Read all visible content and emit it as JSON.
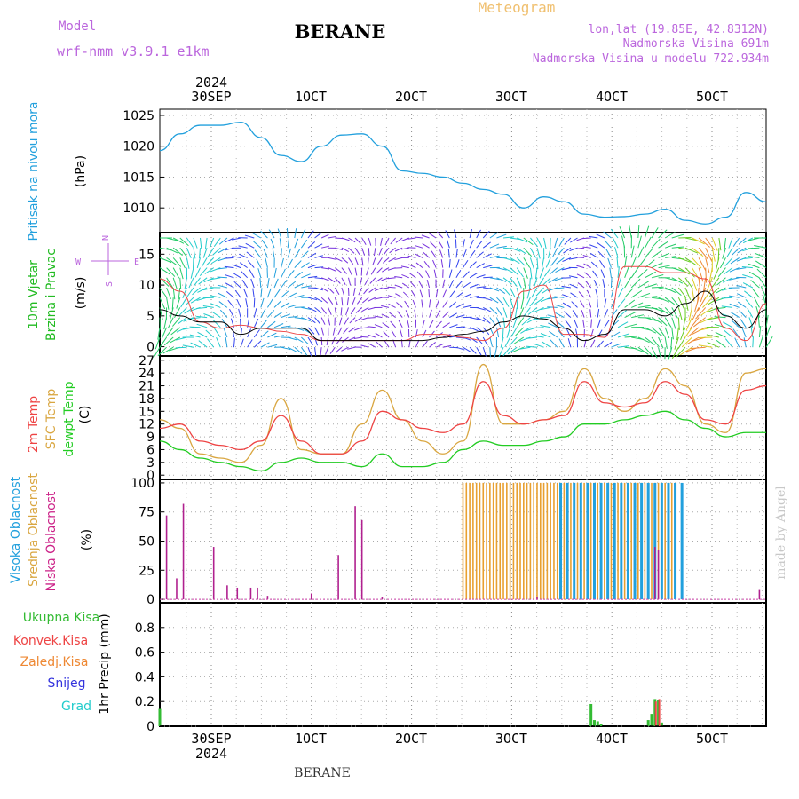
{
  "header": {
    "model_label": "Model",
    "model_name": "wrf-nmm_v3.9.1 e1km",
    "station": "BERANE",
    "title": "Meteogram",
    "location": "lon,lat (19.85E, 42.8312N)",
    "altitude": "Nadmorska Visina 691m",
    "model_altitude": "Nadmorska Visina u modelu 722.934m",
    "footer_station": "BERANE",
    "credit": "made by Angel"
  },
  "time_axis": {
    "top_year": "2024",
    "bottom_year": "2024",
    "tick_labels": [
      "30SEP",
      "1OCT",
      "2OCT",
      "3OCT",
      "4OCT",
      "5OCT"
    ]
  },
  "colors": {
    "pressure": "#22a0dd",
    "temp2m": "#ee4444",
    "sfc_temp": "#d9a640",
    "dewpt": "#22cc22",
    "high_cloud": "#22a0dd",
    "mid_cloud": "#e8a030",
    "low_cloud": "#b0208f",
    "total_precip": "#33bb33",
    "conv_precip": "#ee4444",
    "freezing": "#ee8833",
    "snow": "#3333dd",
    "hail": "#22cccc",
    "wind_label": "#22bb22",
    "wind_dir": "#bb66dd"
  },
  "chart_data": [
    {
      "type": "line",
      "ylabel_main": "Pritisak na nivou mora",
      "ylabel_unit": "(hPa)",
      "yticks": [
        "1010",
        "1015",
        "1020",
        "1025"
      ],
      "ylim": [
        1006,
        1026
      ],
      "x_hours": [
        0,
        6,
        12,
        18,
        24,
        30,
        36,
        42,
        48,
        54,
        60,
        66,
        72,
        78,
        84,
        90,
        96,
        102,
        108,
        114,
        120,
        126,
        132,
        138,
        144,
        150,
        156,
        162,
        168,
        174,
        180
      ],
      "series": [
        {
          "values": [
            1019.3,
            1022.0,
            1023.4,
            1023.4,
            1023.9,
            1021.4,
            1018.5,
            1017.5,
            1020.0,
            1021.8,
            1022.0,
            1020.0,
            1016.0,
            1015.6,
            1015.0,
            1014.0,
            1013.0,
            1012.2,
            1010.0,
            1011.8,
            1011.0,
            1009.0,
            1008.5,
            1008.6,
            1009.0,
            1009.8,
            1008.0,
            1007.4,
            1008.5,
            1012.5,
            1011.0
          ]
        }
      ]
    },
    {
      "type": "line",
      "ylabel_main": "10m Vjetar",
      "ylabel_sub": "Brzina i Pravac",
      "ylabel_unit": "(m/s)",
      "compass": [
        "N",
        "E",
        "S",
        "W"
      ],
      "yticks": [
        "0",
        "5",
        "10",
        "15"
      ],
      "ylim": [
        -1.5,
        18.5
      ],
      "x_hours": [
        0,
        6,
        12,
        18,
        24,
        30,
        36,
        42,
        48,
        54,
        60,
        66,
        72,
        78,
        84,
        90,
        96,
        102,
        108,
        114,
        120,
        126,
        132,
        138,
        144,
        150,
        156,
        162,
        168,
        174,
        180
      ],
      "series": [
        {
          "values": [
            6,
            5,
            4,
            4,
            2,
            3,
            3,
            3,
            1,
            1,
            1,
            1,
            1,
            1,
            1.5,
            2,
            2.5,
            4,
            5,
            4.5,
            3,
            1,
            2,
            6,
            6,
            5,
            7,
            9,
            5,
            3,
            6
          ]
        },
        {
          "values": [
            11,
            9,
            4,
            3,
            3.5,
            3,
            2.5,
            2,
            1,
            1,
            1,
            1,
            1,
            2,
            2,
            1.5,
            1,
            3,
            9,
            10,
            2,
            2,
            1.5,
            13,
            13,
            12,
            12,
            11,
            3,
            1,
            7
          ]
        }
      ]
    },
    {
      "type": "line",
      "ylabel_main": "2m Temp",
      "ylabel_sfc": "SFC Temp",
      "ylabel_dew": "dewpt Temp",
      "ylabel_unit": "(C)",
      "yticks": [
        "0",
        "3",
        "6",
        "9",
        "12",
        "15",
        "18",
        "21",
        "24",
        "27"
      ],
      "ylim": [
        -1,
        28
      ],
      "x_hours": [
        0,
        6,
        12,
        18,
        24,
        30,
        36,
        42,
        48,
        54,
        60,
        66,
        72,
        78,
        84,
        90,
        96,
        102,
        108,
        114,
        120,
        126,
        132,
        138,
        144,
        150,
        156,
        162,
        168,
        174,
        180
      ],
      "series": [
        {
          "values": [
            11,
            12,
            8,
            7,
            6,
            8,
            14,
            8,
            5,
            5,
            8,
            15,
            13,
            11,
            10,
            12,
            22,
            14,
            12,
            13,
            14,
            22,
            17,
            16,
            17,
            22,
            19,
            13,
            12,
            20,
            21
          ]
        },
        {
          "values": [
            13,
            11,
            5,
            4,
            3,
            7,
            18,
            6,
            5,
            5,
            12,
            20,
            13,
            8,
            5,
            8,
            26,
            12,
            12,
            13,
            15,
            25,
            18,
            15,
            18,
            25,
            21,
            12,
            10,
            24,
            25
          ]
        },
        {
          "values": [
            8,
            6,
            4,
            3,
            2,
            1,
            3,
            4,
            3,
            3,
            2,
            5,
            2,
            2,
            3,
            6,
            8,
            7,
            7,
            8,
            9,
            12,
            12,
            13,
            14,
            15,
            13,
            11,
            9,
            10,
            10
          ]
        }
      ]
    },
    {
      "type": "bar",
      "ylabel_high": "Visoka Oblacnost",
      "ylabel_mid": "Srednja Oblacnost",
      "ylabel_low": "Niska Oblacnost",
      "ylabel_unit": "(%)",
      "yticks": [
        "0",
        "25",
        "50",
        "75",
        "100"
      ],
      "ylim": [
        -3,
        103
      ],
      "low_bars": [
        [
          2,
          72
        ],
        [
          5,
          18
        ],
        [
          7,
          82
        ],
        [
          16,
          45
        ],
        [
          20,
          12
        ],
        [
          23,
          10
        ],
        [
          27,
          10
        ],
        [
          29,
          10
        ],
        [
          32,
          3
        ],
        [
          45,
          5
        ],
        [
          53,
          38
        ],
        [
          58,
          80
        ],
        [
          60,
          68
        ],
        [
          66,
          2
        ],
        [
          112,
          2
        ],
        [
          147,
          45
        ],
        [
          148,
          42
        ],
        [
          178,
          8
        ]
      ],
      "mid_range": [
        90,
        152
      ],
      "high_range": [
        119,
        155
      ],
      "mid_level": 100,
      "high_level": 100
    },
    {
      "type": "bar",
      "ylabel_total": "Ukupna Kisa",
      "ylabel_conv": "Konvek.Kisa",
      "ylabel_freeze": "Zaledj.Kisa",
      "ylabel_snow": "Snijeg",
      "ylabel_hail": "Grad",
      "ylabel_main": "1hr Precip (mm)",
      "yticks": [
        "0",
        "0.2",
        "0.4",
        "0.6",
        "0.8"
      ],
      "ylim": [
        0,
        1.0
      ],
      "total_bars": [
        [
          0,
          0.14
        ],
        [
          128,
          0.18
        ],
        [
          129,
          0.05
        ],
        [
          130,
          0.04
        ],
        [
          131,
          0.02
        ],
        [
          145,
          0.05
        ],
        [
          146,
          0.1
        ],
        [
          147,
          0.22
        ],
        [
          148,
          0.21
        ],
        [
          149,
          0.03
        ]
      ],
      "conv_bars": [
        [
          147,
          0.2
        ],
        [
          148,
          0.22
        ]
      ]
    }
  ]
}
